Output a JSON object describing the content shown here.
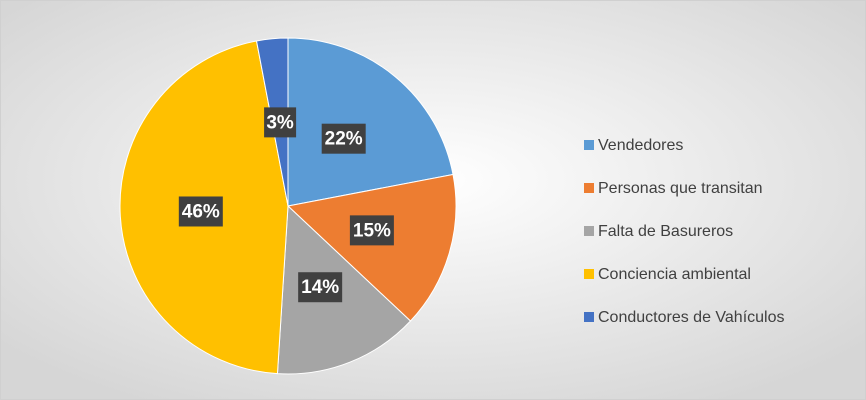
{
  "chart_data": {
    "type": "pie",
    "categories": [
      "Vendedores",
      "Personas que transitan",
      "Falta de Basureros",
      "Conciencia ambiental",
      "Conductores de Vahículos"
    ],
    "values": [
      22,
      15,
      14,
      46,
      3
    ],
    "value_labels": [
      "22%",
      "15%",
      "14%",
      "46%",
      "3%"
    ],
    "colors": [
      "#5b9bd5",
      "#ed7d31",
      "#a5a5a5",
      "#ffc000",
      "#4472c4"
    ],
    "legend": "right"
  }
}
